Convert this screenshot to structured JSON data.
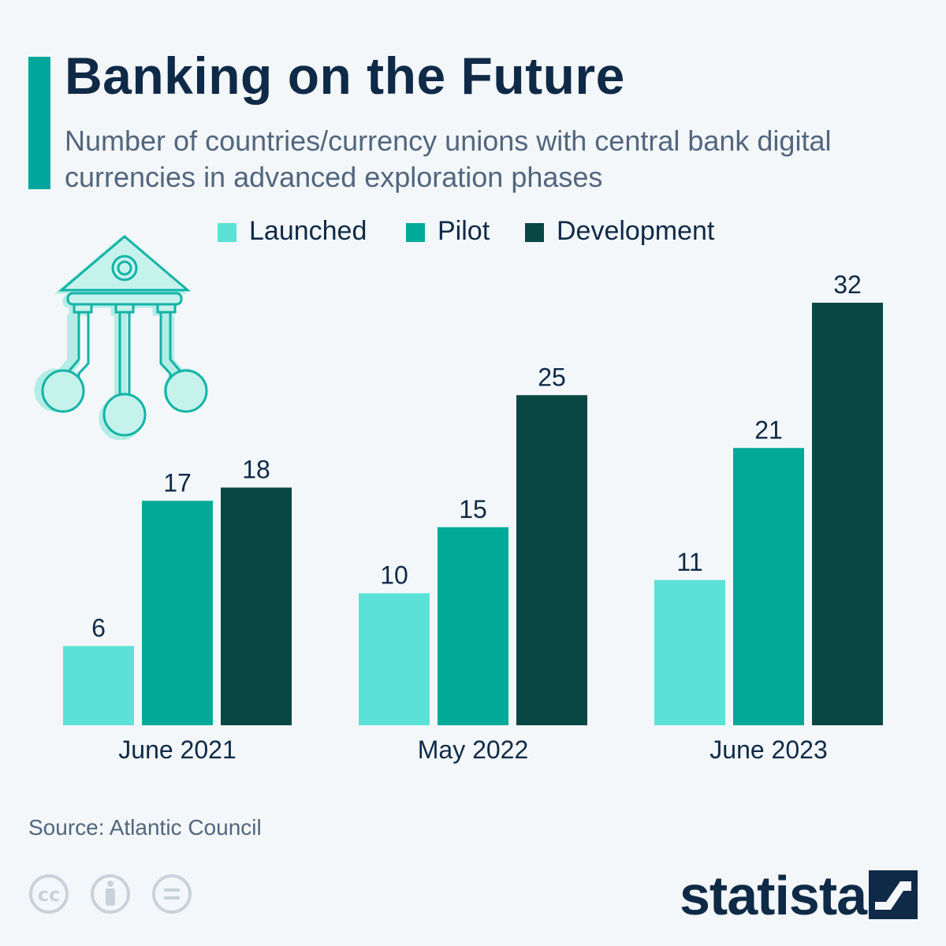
{
  "header": {
    "title": "Banking on the Future",
    "subtitle": "Number of countries/currency unions with central bank digital currencies in advanced exploration phases"
  },
  "footer": {
    "source": "Source: Atlantic Council",
    "brand": "statista"
  },
  "icons": {
    "illustration": "bank-network-icon",
    "license": [
      "creative-commons-icon",
      "attribution-icon",
      "no-derivatives-icon"
    ],
    "brand_mark": "statista-logo-icon"
  },
  "colors": {
    "Launched": "#5ce1d6",
    "Pilot": "#00a998",
    "Development": "#084744",
    "accent": "#00a69c",
    "text": "#0f2a47"
  },
  "chart_data": {
    "type": "bar",
    "categories": [
      "June 2021",
      "May 2022",
      "June 2023"
    ],
    "series": [
      {
        "name": "Launched",
        "values": [
          6,
          10,
          11
        ]
      },
      {
        "name": "Pilot",
        "values": [
          17,
          15,
          21
        ]
      },
      {
        "name": "Development",
        "values": [
          18,
          25,
          32
        ]
      }
    ],
    "title": "Banking on the Future",
    "subtitle": "Number of countries/currency unions with central bank digital currencies in advanced exploration phases",
    "xlabel": "",
    "ylabel": "",
    "ylim": [
      0,
      32
    ],
    "grid": false,
    "legend": "top-center",
    "data_labels": true
  }
}
